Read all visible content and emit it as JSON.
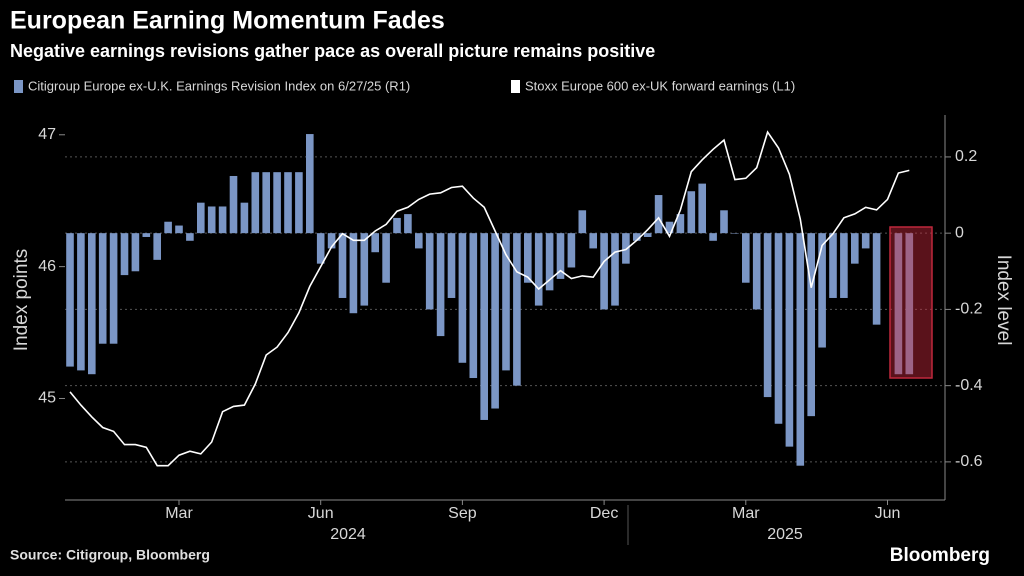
{
  "chart_data": {
    "type": "bar_line",
    "title": "European Earning Momentum Fades",
    "subtitle": "Negative earnings revisions gather pace as overall picture remains positive",
    "y_label": "Index points",
    "y2_label": "Index level",
    "source": "Source: Citigroup, Bloomberg",
    "brand": "Bloomberg",
    "categories": [
      null,
      null,
      null,
      null,
      null,
      null,
      null,
      null,
      null,
      null,
      "Mar",
      null,
      null,
      null,
      null,
      null,
      null,
      null,
      null,
      null,
      null,
      null,
      null,
      "Jun",
      null,
      null,
      null,
      null,
      null,
      null,
      null,
      null,
      null,
      null,
      null,
      null,
      "Sep",
      null,
      null,
      null,
      null,
      null,
      null,
      null,
      null,
      null,
      null,
      null,
      null,
      "Dec",
      null,
      null,
      null,
      null,
      null,
      null,
      null,
      null,
      null,
      null,
      null,
      null,
      "Mar",
      null,
      null,
      null,
      null,
      null,
      null,
      null,
      null,
      null,
      null,
      null,
      null,
      "Jun",
      null,
      null
    ],
    "x_groups": [
      "2024",
      "2025"
    ],
    "series": [
      {
        "name": "Citigroup Europe ex-U.K. Earnings Revision Index on 6/27/25 (R1)",
        "color": "#7b96c5",
        "axis": "y2",
        "kind": "bar",
        "values": [
          -0.35,
          -0.36,
          -0.37,
          -0.29,
          -0.29,
          -0.11,
          -0.1,
          -0.01,
          -0.07,
          0.03,
          0.02,
          -0.02,
          0.08,
          0.07,
          0.07,
          0.15,
          0.08,
          0.16,
          0.16,
          0.16,
          0.16,
          0.16,
          0.26,
          -0.08,
          -0.04,
          -0.17,
          -0.21,
          -0.19,
          -0.05,
          -0.13,
          0.04,
          0.05,
          -0.04,
          -0.2,
          -0.27,
          -0.17,
          -0.34,
          -0.38,
          -0.49,
          -0.46,
          -0.36,
          -0.4,
          -0.13,
          -0.19,
          -0.15,
          -0.12,
          -0.09,
          0.06,
          -0.04,
          -0.2,
          -0.19,
          -0.08,
          -0.02,
          -0.01,
          0.1,
          0.03,
          0.05,
          0.11,
          0.13,
          -0.02,
          0.06,
          0.0,
          -0.13,
          -0.2,
          -0.43,
          -0.5,
          -0.56,
          -0.61,
          -0.48,
          -0.3,
          -0.17,
          -0.17,
          -0.08,
          -0.04,
          -0.24,
          null,
          -0.37,
          -0.37
        ]
      },
      {
        "name": "Stoxx Europe 600 ex-UK forward earnings (L1)",
        "color": "#ffffff",
        "axis": "y",
        "kind": "line",
        "values": [
          45.05,
          44.95,
          44.86,
          44.78,
          44.75,
          44.65,
          44.65,
          44.63,
          44.49,
          44.49,
          44.57,
          44.6,
          44.58,
          44.67,
          44.9,
          44.94,
          44.95,
          45.11,
          45.33,
          45.39,
          45.5,
          45.65,
          45.85,
          46.0,
          46.15,
          46.25,
          46.2,
          46.2,
          46.27,
          46.32,
          46.42,
          46.45,
          46.51,
          46.55,
          46.56,
          46.6,
          46.61,
          46.52,
          46.45,
          46.27,
          46.09,
          45.96,
          45.92,
          45.83,
          45.9,
          45.97,
          45.91,
          45.93,
          45.92,
          46.04,
          46.11,
          46.13,
          46.2,
          46.28,
          46.37,
          46.23,
          46.43,
          46.72,
          46.81,
          46.89,
          46.96,
          46.66,
          46.67,
          46.75,
          47.02,
          46.9,
          46.7,
          46.36,
          45.84,
          46.16,
          46.25,
          46.37,
          46.4,
          46.45,
          46.43,
          46.51,
          46.71,
          46.73
        ]
      }
    ],
    "ylim": [
      44.23,
      47.15
    ],
    "yticks": [
      45,
      46,
      47
    ],
    "y2lim": [
      -0.7,
      0.31
    ],
    "y2ticks": [
      -0.6,
      -0.4,
      -0.2,
      0.0,
      0.2
    ],
    "grid": true
  }
}
